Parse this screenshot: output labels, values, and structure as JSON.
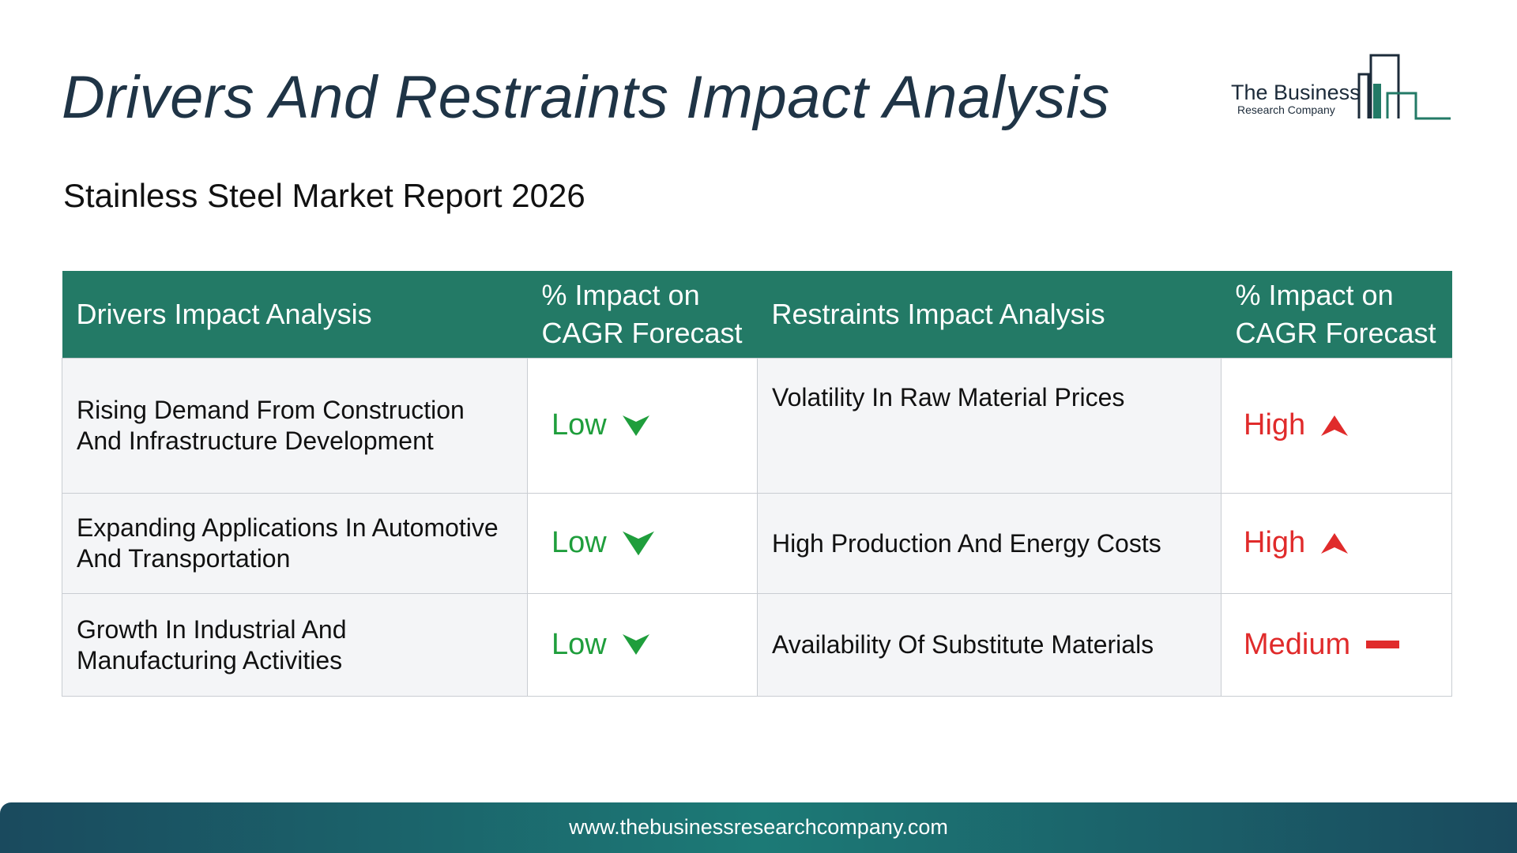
{
  "title": "Drivers And Restraints Impact Analysis",
  "subtitle": "Stainless Steel Market Report 2026",
  "logo": {
    "line1": "The Business",
    "line2": "Research Company",
    "icon": "building-bars-icon",
    "colors": [
      "#1c2b3a",
      "#237a66"
    ]
  },
  "table": {
    "headers": {
      "drivers": "Drivers Impact Analysis",
      "drivers_impact": "% Impact on CAGR Forecast",
      "restraints": "Restraints Impact Analysis",
      "restraints_impact": "% Impact on CAGR Forecast"
    },
    "rows": [
      {
        "driver": "Rising Demand From Construction And Infrastructure Development",
        "driver_impact": "Low",
        "driver_icon": "arrow-down-icon",
        "restraint": "Volatility In Raw Material Prices",
        "restraint_impact": "High",
        "restraint_icon": "arrow-up-icon"
      },
      {
        "driver": "Expanding Applications In Automotive And Transportation",
        "driver_impact": "Low",
        "driver_icon": "arrow-down-icon",
        "restraint": "High Production And Energy Costs",
        "restraint_impact": "High",
        "restraint_icon": "arrow-up-icon"
      },
      {
        "driver": "Growth In Industrial And Manufacturing Activities",
        "driver_impact": "Low",
        "driver_icon": "arrow-down-icon",
        "restraint": "Availability Of Substitute Materials",
        "restraint_impact": "Medium",
        "restraint_icon": "dash-icon"
      }
    ]
  },
  "colors": {
    "header_bg": "#237a66",
    "low": "#1f9e3c",
    "high": "#e02b2b",
    "medium": "#e02b2b"
  },
  "footer": {
    "url": "www.thebusinessresearchcompany.com"
  }
}
